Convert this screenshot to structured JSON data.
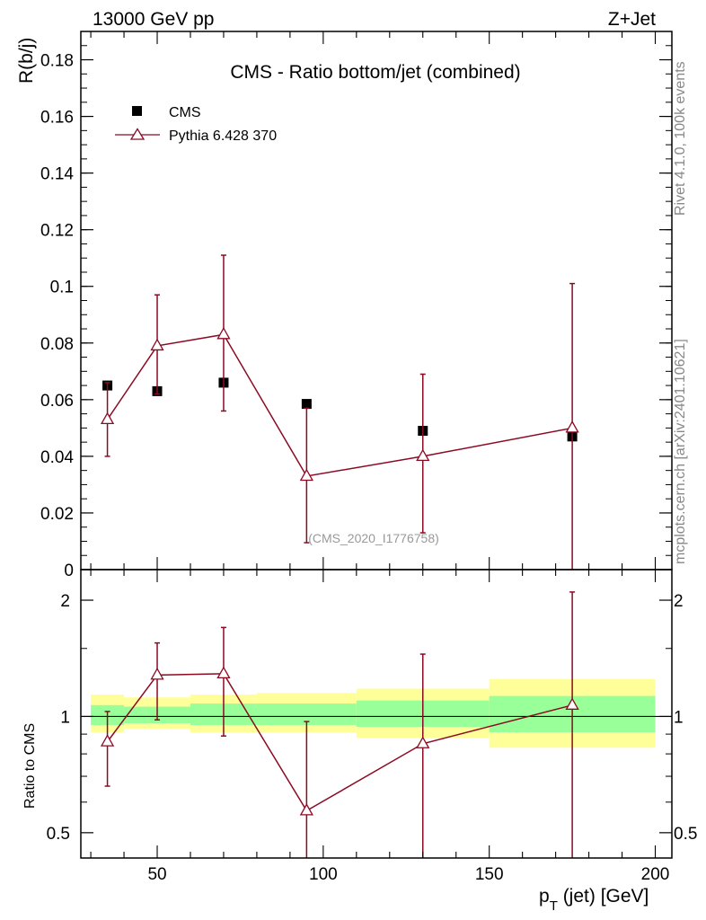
{
  "header": {
    "left": "13000 GeV pp",
    "right": "Z+Jet"
  },
  "side": {
    "top": "Rivet 4.1.0,  100k events",
    "bottom": "mcplots.cern.ch [arXiv:2401.10621]"
  },
  "colors": {
    "mc": "#8b0a23",
    "data": "#000000",
    "band_inner": "#99ff99",
    "band_outer": "#ffff99"
  },
  "chart_data": [
    {
      "type": "scatter",
      "panel": "main",
      "title": "CMS - Ratio bottom/jet (combined)",
      "ylabel": "R(b/j)",
      "xlabel": "",
      "xlim": [
        27,
        205
      ],
      "ylim": [
        0,
        0.19
      ],
      "yticks": [
        0,
        0.02,
        0.04,
        0.06,
        0.08,
        0.1,
        0.12,
        0.14,
        0.16,
        0.18
      ],
      "ytick_labels": [
        "0",
        "0.02",
        "0.04",
        "0.06",
        "0.08",
        "0.1",
        "0.12",
        "0.14",
        "0.16",
        "0.18"
      ],
      "watermark": "(CMS_2020_I1776758)",
      "legend": [
        {
          "label": "CMS",
          "marker": "square"
        },
        {
          "label": "Pythia 6.428 370",
          "marker": "triangle-line"
        }
      ],
      "series": [
        {
          "name": "CMS",
          "x": [
            35,
            50,
            70,
            95,
            130,
            175
          ],
          "y": [
            0.065,
            0.063,
            0.066,
            0.0585,
            0.049,
            0.047
          ]
        },
        {
          "name": "Pythia 6.428 370",
          "x": [
            35,
            50,
            70,
            95,
            130,
            175
          ],
          "y": [
            0.053,
            0.079,
            0.083,
            0.033,
            0.04,
            0.05
          ],
          "yerr_low": [
            0.04,
            0.062,
            0.056,
            0.0095,
            0.013,
            0.0
          ],
          "yerr_high": [
            0.066,
            0.097,
            0.111,
            0.057,
            0.069,
            0.101
          ]
        }
      ]
    },
    {
      "type": "line",
      "panel": "ratio",
      "ylabel": "Ratio to CMS",
      "xlabel": "p_T (jet) [GeV]",
      "xlabel_main": "p",
      "xlabel_sub": "T",
      "xlabel_rest": " (jet) [GeV]",
      "xlim": [
        27,
        205
      ],
      "ylim": [
        0.43,
        2.4
      ],
      "log_y": true,
      "xticks": [
        50,
        100,
        150,
        200
      ],
      "xtick_labels": [
        "50",
        "100",
        "150",
        "200"
      ],
      "yticks": [
        0.5,
        1,
        2
      ],
      "ytick_labels": [
        "0.5",
        "1",
        "2"
      ],
      "bands": [
        {
          "x0": 30,
          "x1": 40,
          "outer": [
            0.91,
            1.14
          ],
          "inner": [
            0.95,
            1.07
          ]
        },
        {
          "x0": 40,
          "x1": 60,
          "outer": [
            0.93,
            1.12
          ],
          "inner": [
            0.96,
            1.06
          ]
        },
        {
          "x0": 60,
          "x1": 80,
          "outer": [
            0.91,
            1.14
          ],
          "inner": [
            0.95,
            1.08
          ]
        },
        {
          "x0": 80,
          "x1": 110,
          "outer": [
            0.91,
            1.15
          ],
          "inner": [
            0.95,
            1.08
          ]
        },
        {
          "x0": 110,
          "x1": 150,
          "outer": [
            0.88,
            1.18
          ],
          "inner": [
            0.94,
            1.1
          ]
        },
        {
          "x0": 150,
          "x1": 200,
          "outer": [
            0.83,
            1.25
          ],
          "inner": [
            0.91,
            1.13
          ]
        }
      ],
      "series": [
        {
          "name": "Pythia 6.428 370",
          "x": [
            35,
            50,
            70,
            95,
            130,
            175
          ],
          "y": [
            0.86,
            1.28,
            1.29,
            0.57,
            0.85,
            1.07
          ],
          "yerr_low": [
            0.66,
            0.98,
            0.89,
            0.43,
            0.43,
            0.43
          ],
          "yerr_high": [
            1.03,
            1.55,
            1.7,
            0.97,
            1.45,
            2.1
          ]
        }
      ]
    }
  ]
}
